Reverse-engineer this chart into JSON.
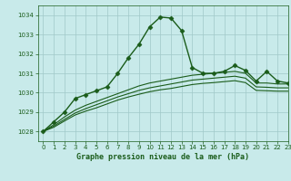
{
  "title": "Graphe pression niveau de la mer (hPa)",
  "bg_color": "#c8eaea",
  "grid_color": "#a0c8c8",
  "line_color": "#1a5c1a",
  "xlim": [
    -0.5,
    23
  ],
  "ylim": [
    1027.5,
    1034.5
  ],
  "yticks": [
    1028,
    1029,
    1030,
    1031,
    1032,
    1033,
    1034
  ],
  "xticks": [
    0,
    1,
    2,
    3,
    4,
    5,
    6,
    7,
    8,
    9,
    10,
    11,
    12,
    13,
    14,
    15,
    16,
    17,
    18,
    19,
    20,
    21,
    22,
    23
  ],
  "series": [
    {
      "x": [
        0,
        1,
        2,
        3,
        4,
        5,
        6,
        7,
        8,
        9,
        10,
        11,
        12,
        13,
        14,
        15,
        16,
        17,
        18,
        19,
        20,
        21,
        22,
        23
      ],
      "y": [
        1028.0,
        1028.5,
        1029.0,
        1029.7,
        1029.9,
        1030.1,
        1030.3,
        1031.0,
        1031.8,
        1032.5,
        1033.4,
        1033.9,
        1033.85,
        1033.2,
        1031.3,
        1031.0,
        1031.0,
        1031.1,
        1031.4,
        1031.15,
        1030.6,
        1031.1,
        1030.6,
        1030.5
      ],
      "marker": "D",
      "linewidth": 1.0,
      "markersize": 2.5
    },
    {
      "x": [
        0,
        1,
        2,
        3,
        4,
        5,
        6,
        7,
        8,
        9,
        10,
        11,
        12,
        13,
        14,
        15,
        16,
        17,
        18,
        19,
        20,
        21,
        22,
        23
      ],
      "y": [
        1028.0,
        1028.35,
        1028.75,
        1029.1,
        1029.35,
        1029.55,
        1029.75,
        1029.95,
        1030.15,
        1030.35,
        1030.5,
        1030.6,
        1030.7,
        1030.8,
        1030.9,
        1030.95,
        1031.0,
        1031.05,
        1031.1,
        1031.0,
        1030.5,
        1030.5,
        1030.45,
        1030.45
      ],
      "marker": null,
      "linewidth": 0.8,
      "markersize": 0
    },
    {
      "x": [
        0,
        1,
        2,
        3,
        4,
        5,
        6,
        7,
        8,
        9,
        10,
        11,
        12,
        13,
        14,
        15,
        16,
        17,
        18,
        19,
        20,
        21,
        22,
        23
      ],
      "y": [
        1028.0,
        1028.28,
        1028.62,
        1028.95,
        1029.18,
        1029.38,
        1029.58,
        1029.78,
        1029.95,
        1030.12,
        1030.25,
        1030.35,
        1030.45,
        1030.55,
        1030.65,
        1030.7,
        1030.75,
        1030.8,
        1030.85,
        1030.75,
        1030.3,
        1030.28,
        1030.25,
        1030.25
      ],
      "marker": null,
      "linewidth": 0.8,
      "markersize": 0
    },
    {
      "x": [
        0,
        1,
        2,
        3,
        4,
        5,
        6,
        7,
        8,
        9,
        10,
        11,
        12,
        13,
        14,
        15,
        16,
        17,
        18,
        19,
        20,
        21,
        22,
        23
      ],
      "y": [
        1028.0,
        1028.22,
        1028.54,
        1028.85,
        1029.05,
        1029.22,
        1029.42,
        1029.62,
        1029.78,
        1029.92,
        1030.05,
        1030.15,
        1030.22,
        1030.32,
        1030.42,
        1030.48,
        1030.52,
        1030.57,
        1030.62,
        1030.52,
        1030.12,
        1030.1,
        1030.08,
        1030.08
      ],
      "marker": null,
      "linewidth": 0.8,
      "markersize": 0
    }
  ]
}
